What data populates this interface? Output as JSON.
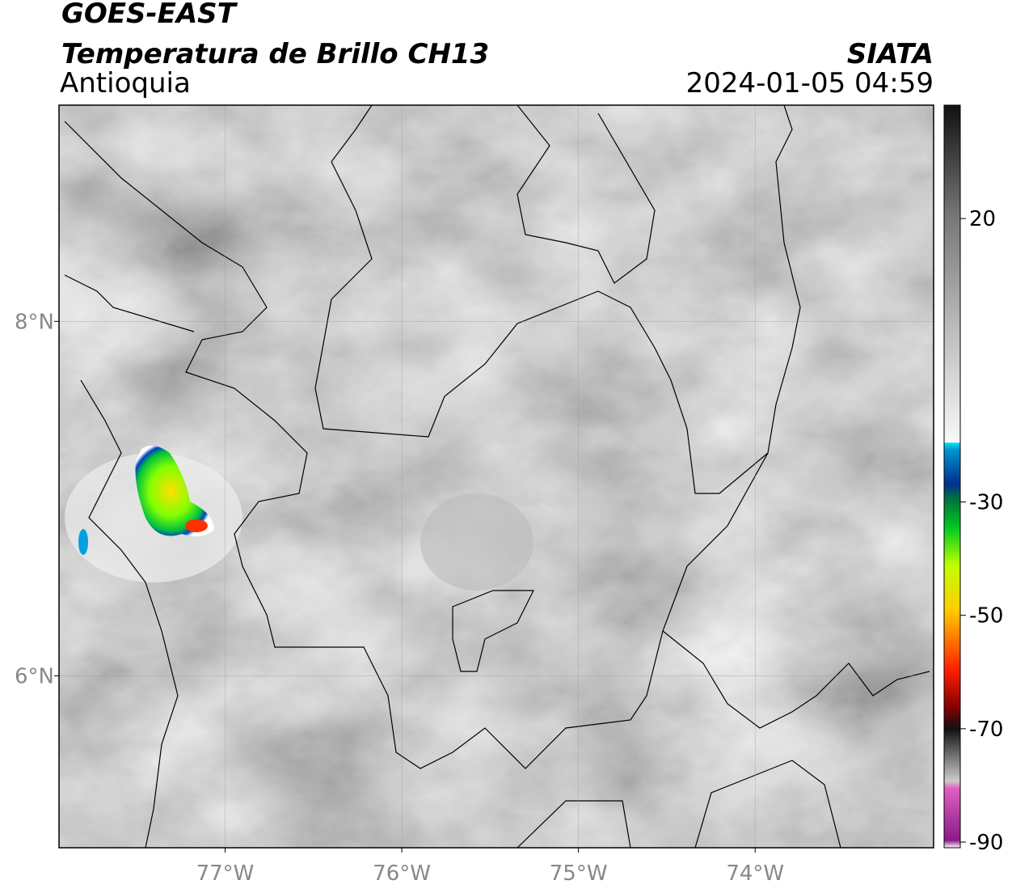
{
  "header": {
    "title": "GOES-EAST",
    "subtitle": "Temperatura de Brillo CH13",
    "region": "Antioquia",
    "source": "SIATA",
    "timestamp": "2024-01-05 04:59"
  },
  "map": {
    "lon_range": [
      -77.94,
      -72.99
    ],
    "lat_range": [
      5.03,
      9.22
    ],
    "lon_ticks": [
      {
        "value": -77,
        "label": "77°W"
      },
      {
        "value": -76,
        "label": "76°W"
      },
      {
        "value": -75,
        "label": "75°W"
      },
      {
        "value": -74,
        "label": "74°W"
      }
    ],
    "lat_ticks": [
      {
        "value": 8,
        "label": "8°N"
      },
      {
        "value": 6,
        "label": "6°N"
      }
    ]
  },
  "colorbar": {
    "range": [
      -91,
      40
    ],
    "ticks": [
      20,
      -30,
      -50,
      -70,
      -90
    ]
  }
}
